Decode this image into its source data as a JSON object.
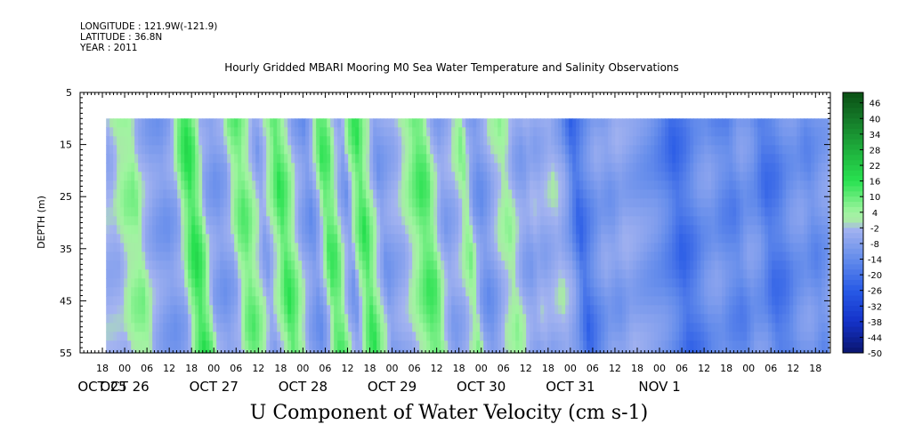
{
  "header": {
    "longitude": "LONGITUDE : 121.9W(-121.9)",
    "latitude": "LATITUDE : 36.8N",
    "year": "YEAR : 2011"
  },
  "chart_data": {
    "type": "heatmap",
    "title": "Hourly Gridded MBARI Mooring M0 Sea Water Temperature and Salinity Observations",
    "subtitle": "U Component of Water Velocity (cm s-1)",
    "ylabel": "DEPTH (m)",
    "ylim": [
      5,
      55
    ],
    "y_inverted": true,
    "y_ticks": [
      5,
      15,
      25,
      35,
      45,
      55
    ],
    "data_depth_range": [
      10,
      55
    ],
    "x_hour_range": [
      -12,
      190
    ],
    "x_data_range": [
      -5,
      189
    ],
    "x_hour_ticks": [
      {
        "h": -6,
        "label": "18"
      },
      {
        "h": 0,
        "label": "00"
      },
      {
        "h": 6,
        "label": "06"
      },
      {
        "h": 12,
        "label": "12"
      },
      {
        "h": 18,
        "label": "18"
      },
      {
        "h": 24,
        "label": "00"
      },
      {
        "h": 30,
        "label": "06"
      },
      {
        "h": 36,
        "label": "12"
      },
      {
        "h": 42,
        "label": "18"
      },
      {
        "h": 48,
        "label": "00"
      },
      {
        "h": 54,
        "label": "06"
      },
      {
        "h": 60,
        "label": "12"
      },
      {
        "h": 66,
        "label": "18"
      },
      {
        "h": 72,
        "label": "00"
      },
      {
        "h": 78,
        "label": "06"
      },
      {
        "h": 84,
        "label": "12"
      },
      {
        "h": 90,
        "label": "18"
      },
      {
        "h": 96,
        "label": "00"
      },
      {
        "h": 102,
        "label": "06"
      },
      {
        "h": 108,
        "label": "12"
      },
      {
        "h": 114,
        "label": "18"
      },
      {
        "h": 120,
        "label": "00"
      },
      {
        "h": 126,
        "label": "06"
      },
      {
        "h": 132,
        "label": "12"
      },
      {
        "h": 138,
        "label": "18"
      },
      {
        "h": 144,
        "label": "00"
      },
      {
        "h": 150,
        "label": "06"
      },
      {
        "h": 156,
        "label": "12"
      },
      {
        "h": 162,
        "label": "18"
      },
      {
        "h": 168,
        "label": "00"
      },
      {
        "h": 174,
        "label": "06"
      },
      {
        "h": 180,
        "label": "12"
      },
      {
        "h": 186,
        "label": "18"
      }
    ],
    "x_day_labels": [
      {
        "h": -6,
        "label": "OCT 25"
      },
      {
        "h": 0,
        "label": "OCT 26"
      },
      {
        "h": 24,
        "label": "OCT 27"
      },
      {
        "h": 48,
        "label": "OCT 28"
      },
      {
        "h": 72,
        "label": "OCT 29"
      },
      {
        "h": 96,
        "label": "OCT 30"
      },
      {
        "h": 120,
        "label": "OCT 31"
      },
      {
        "h": 144,
        "label": "NOV  1"
      }
    ],
    "colorbar": {
      "min": -50,
      "max": 50,
      "step": 2,
      "labels": [
        46,
        40,
        34,
        28,
        22,
        16,
        10,
        4,
        -2,
        -8,
        -14,
        -20,
        -26,
        -32,
        -38,
        -44,
        -50
      ]
    },
    "u_profile": [
      {
        "h": -5,
        "v": -4
      },
      {
        "h": -2,
        "v": 4
      },
      {
        "h": 1,
        "v": 6
      },
      {
        "h": 3,
        "v": -3
      },
      {
        "h": 6,
        "v": -8
      },
      {
        "h": 9,
        "v": -10
      },
      {
        "h": 12,
        "v": -6
      },
      {
        "h": 14,
        "v": 8
      },
      {
        "h": 16,
        "v": 16
      },
      {
        "h": 18,
        "v": 9
      },
      {
        "h": 20,
        "v": -6
      },
      {
        "h": 23,
        "v": -10
      },
      {
        "h": 26,
        "v": -6
      },
      {
        "h": 28,
        "v": 6
      },
      {
        "h": 30,
        "v": 10
      },
      {
        "h": 32,
        "v": 4
      },
      {
        "h": 35,
        "v": -8
      },
      {
        "h": 38,
        "v": 4
      },
      {
        "h": 40,
        "v": 14
      },
      {
        "h": 42,
        "v": 8
      },
      {
        "h": 45,
        "v": -6
      },
      {
        "h": 48,
        "v": -12
      },
      {
        "h": 50,
        "v": -4
      },
      {
        "h": 52,
        "v": 12
      },
      {
        "h": 54,
        "v": 10
      },
      {
        "h": 56,
        "v": -4
      },
      {
        "h": 58,
        "v": -10
      },
      {
        "h": 60,
        "v": 6
      },
      {
        "h": 62,
        "v": 14
      },
      {
        "h": 64,
        "v": 4
      },
      {
        "h": 67,
        "v": -10
      },
      {
        "h": 70,
        "v": -6
      },
      {
        "h": 72,
        "v": -4
      },
      {
        "h": 75,
        "v": 4
      },
      {
        "h": 78,
        "v": 12
      },
      {
        "h": 80,
        "v": 10
      },
      {
        "h": 82,
        "v": -2
      },
      {
        "h": 84,
        "v": -8
      },
      {
        "h": 87,
        "v": -4
      },
      {
        "h": 90,
        "v": 6
      },
      {
        "h": 92,
        "v": -8
      },
      {
        "h": 94,
        "v": -12
      },
      {
        "h": 96,
        "v": -8
      },
      {
        "h": 98,
        "v": -2
      },
      {
        "h": 101,
        "v": 4
      },
      {
        "h": 104,
        "v": -6
      },
      {
        "h": 106,
        "v": -8
      },
      {
        "h": 108,
        "v": -4
      },
      {
        "h": 110,
        "v": -6
      },
      {
        "h": 112,
        "v": -4
      },
      {
        "h": 114,
        "v": -2
      },
      {
        "h": 117,
        "v": -8
      },
      {
        "h": 120,
        "v": -22
      },
      {
        "h": 123,
        "v": -14
      },
      {
        "h": 126,
        "v": -8
      },
      {
        "h": 129,
        "v": -10
      },
      {
        "h": 132,
        "v": -6
      },
      {
        "h": 135,
        "v": -8
      },
      {
        "h": 138,
        "v": -10
      },
      {
        "h": 141,
        "v": -12
      },
      {
        "h": 144,
        "v": -16
      },
      {
        "h": 147,
        "v": -22
      },
      {
        "h": 150,
        "v": -18
      },
      {
        "h": 153,
        "v": -12
      },
      {
        "h": 156,
        "v": -10
      },
      {
        "h": 159,
        "v": -14
      },
      {
        "h": 162,
        "v": -16
      },
      {
        "h": 165,
        "v": -10
      },
      {
        "h": 168,
        "v": -12
      },
      {
        "h": 171,
        "v": -20
      },
      {
        "h": 174,
        "v": -18
      },
      {
        "h": 177,
        "v": -12
      },
      {
        "h": 180,
        "v": -10
      },
      {
        "h": 183,
        "v": -14
      },
      {
        "h": 186,
        "v": -10
      },
      {
        "h": 189,
        "v": -8
      }
    ],
    "grid": false,
    "legend": "right colorbar"
  },
  "colors": {
    "background": "#ffffff",
    "axis": "#000000"
  }
}
